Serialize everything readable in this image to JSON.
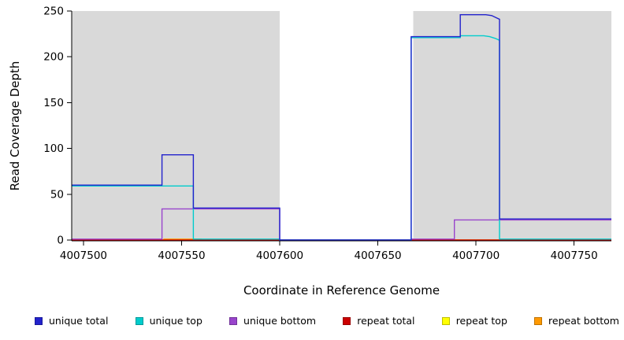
{
  "page": {
    "background_color": "#ffffff"
  },
  "chart_data": {
    "type": "line",
    "title": "",
    "xlabel": "Coordinate in Reference Genome",
    "ylabel": "Read Coverage Depth",
    "xlim": [
      4007494,
      4007769
    ],
    "ylim": [
      0,
      250
    ],
    "x_ticks": [
      4007500,
      4007550,
      4007600,
      4007650,
      4007700,
      4007750
    ],
    "y_ticks": [
      0,
      50,
      100,
      150,
      200,
      250
    ],
    "grid": false,
    "legend_position": "bottom",
    "band_color": "#d9d9d9",
    "background_bands": [
      {
        "x_start": 4007494,
        "x_end": 4007600,
        "color": "#d9d9d9"
      },
      {
        "x_start": 4007668,
        "x_end": 4007769,
        "color": "#d9d9d9"
      }
    ],
    "series": [
      {
        "name": "unique total",
        "color": "#2222cc",
        "points": [
          [
            4007494,
            60
          ],
          [
            4007540,
            60
          ],
          [
            4007540,
            93
          ],
          [
            4007556,
            93
          ],
          [
            4007556,
            35
          ],
          [
            4007600,
            35
          ],
          [
            4007600,
            0
          ],
          [
            4007667,
            0
          ],
          [
            4007667,
            222
          ],
          [
            4007692,
            222
          ],
          [
            4007692,
            246
          ],
          [
            4007705,
            246
          ],
          [
            4007708,
            245
          ],
          [
            4007710,
            243
          ],
          [
            4007712,
            241
          ],
          [
            4007712,
            23
          ],
          [
            4007769,
            23
          ]
        ]
      },
      {
        "name": "unique top",
        "color": "#00cccc",
        "points": [
          [
            4007494,
            59
          ],
          [
            4007556,
            59
          ],
          [
            4007556,
            1
          ],
          [
            4007600,
            1
          ],
          [
            4007600,
            0
          ],
          [
            4007667,
            0
          ],
          [
            4007667,
            221
          ],
          [
            4007692,
            221
          ],
          [
            4007692,
            223
          ],
          [
            4007704,
            223
          ],
          [
            4007707,
            222
          ],
          [
            4007710,
            220
          ],
          [
            4007712,
            218
          ],
          [
            4007712,
            1
          ],
          [
            4007769,
            1
          ]
        ]
      },
      {
        "name": "unique bottom",
        "color": "#9944cc",
        "points": [
          [
            4007494,
            1
          ],
          [
            4007540,
            1
          ],
          [
            4007540,
            34
          ],
          [
            4007600,
            34
          ],
          [
            4007600,
            0
          ],
          [
            4007667,
            0
          ],
          [
            4007667,
            1
          ],
          [
            4007689,
            1
          ],
          [
            4007689,
            22
          ],
          [
            4007769,
            22
          ]
        ]
      },
      {
        "name": "repeat total",
        "color": "#cc0000",
        "points": [
          [
            4007494,
            0
          ],
          [
            4007769,
            0
          ]
        ]
      },
      {
        "name": "repeat top",
        "color": "#ffff00",
        "points": [
          [
            4007494,
            0
          ],
          [
            4007769,
            0
          ]
        ]
      },
      {
        "name": "repeat bottom",
        "color": "#ff9900",
        "points": [
          [
            4007494,
            0
          ],
          [
            4007541,
            0
          ],
          [
            4007541,
            1
          ],
          [
            4007560,
            1
          ],
          [
            4007560,
            0
          ],
          [
            4007769,
            0
          ]
        ]
      }
    ]
  }
}
